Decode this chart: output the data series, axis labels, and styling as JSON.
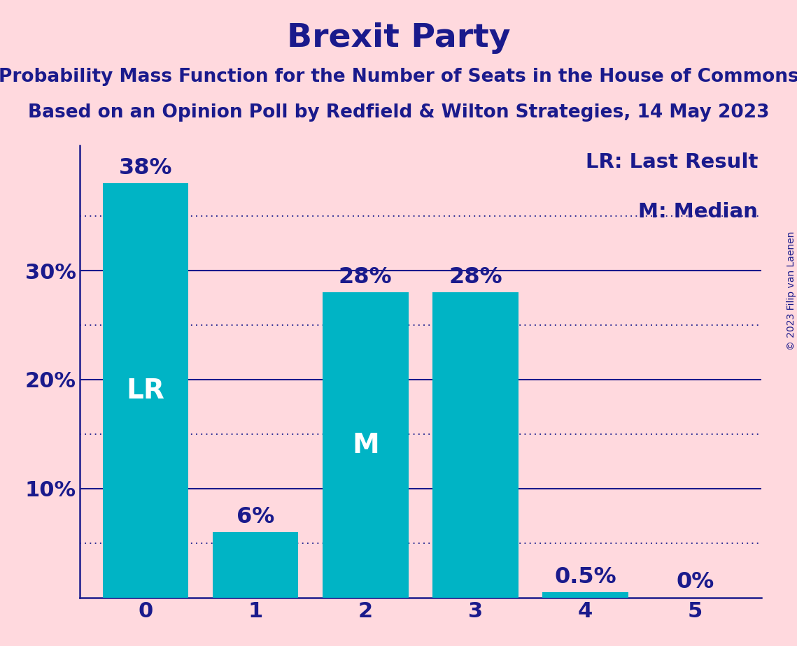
{
  "title": "Brexit Party",
  "subtitle1": "Probability Mass Function for the Number of Seats in the House of Commons",
  "subtitle2": "Based on an Opinion Poll by Redfield & Wilton Strategies, 14 May 2023",
  "copyright": "© 2023 Filip van Laenen",
  "categories": [
    0,
    1,
    2,
    3,
    4,
    5
  ],
  "values": [
    0.38,
    0.06,
    0.28,
    0.28,
    0.005,
    0.0
  ],
  "bar_color": "#00B4C5",
  "background_color": "#FFD9DE",
  "text_color": "#1A1A8C",
  "bar_label_color_inside": "#FFFFFF",
  "bar_label_color_outside": "#1A1A8C",
  "labels": [
    "38%",
    "6%",
    "28%",
    "28%",
    "0.5%",
    "0%"
  ],
  "bar_annotations": [
    {
      "bar": 0,
      "text": "LR"
    },
    {
      "bar": 2,
      "text": "M"
    }
  ],
  "legend_lines": [
    "LR: Last Result",
    "M: Median"
  ],
  "yticks": [
    0.1,
    0.2,
    0.3
  ],
  "ytick_labels": [
    "10%",
    "20%",
    "30%"
  ],
  "dotted_lines": [
    0.05,
    0.15,
    0.25,
    0.35
  ],
  "solid_lines": [
    0.1,
    0.2,
    0.3
  ],
  "ylim": [
    0,
    0.415
  ],
  "title_fontsize": 34,
  "subtitle_fontsize": 19,
  "axis_tick_fontsize": 22,
  "bar_label_fontsize": 23,
  "annotation_fontsize": 28,
  "legend_fontsize": 21,
  "copyright_fontsize": 10,
  "bar_width": 0.78
}
